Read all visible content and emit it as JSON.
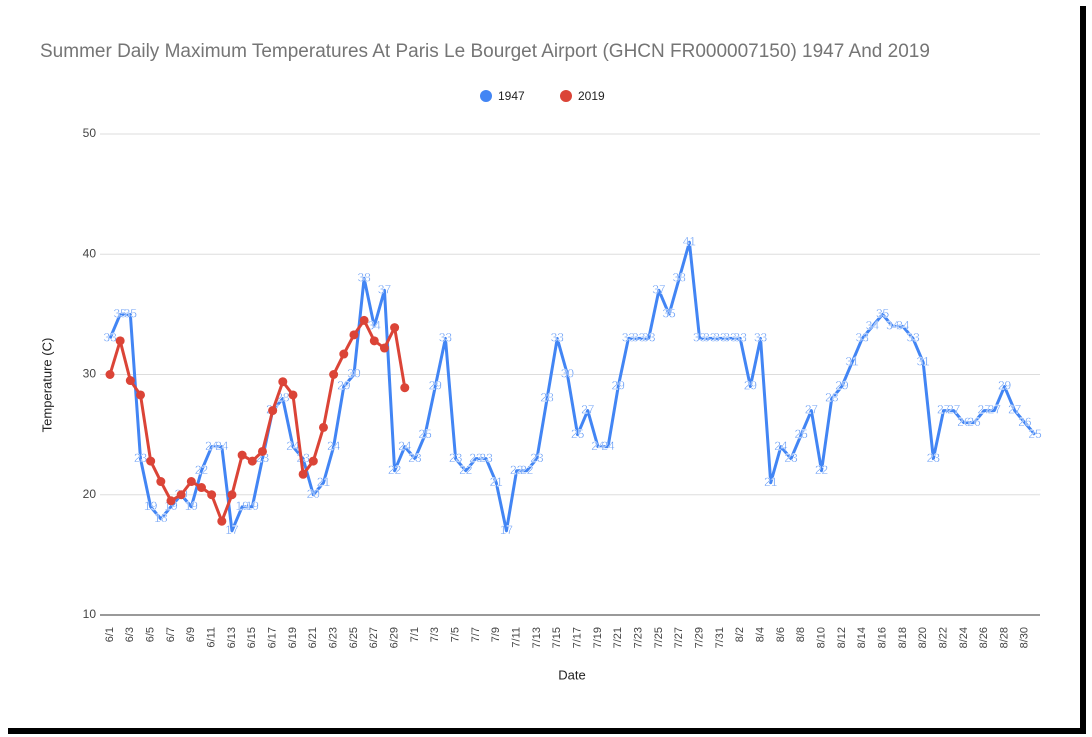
{
  "chart_data": {
    "type": "line",
    "title": "Summer Daily Maximum Temperatures At Paris Le Bourget Airport (GHCN FR000007150) 1947 And 2019",
    "x_label": "Date",
    "y_label": "Temperature (C)",
    "categories": [
      "6/1",
      null,
      "6/3",
      null,
      "6/5",
      null,
      "6/7",
      null,
      "6/9",
      null,
      "6/11",
      null,
      "6/13",
      null,
      "6/15",
      null,
      "6/17",
      null,
      "6/19",
      null,
      "6/21",
      null,
      "6/23",
      null,
      "6/25",
      null,
      "6/27",
      null,
      "6/29",
      null,
      "7/1",
      null,
      "7/3",
      null,
      "7/5",
      null,
      "7/7",
      null,
      "7/9",
      null,
      "7/11",
      null,
      "7/13",
      null,
      "7/15",
      null,
      "7/17",
      null,
      "7/19",
      null,
      "7/21",
      null,
      "7/23",
      null,
      "7/25",
      null,
      "7/27",
      null,
      "7/29",
      null,
      "7/31",
      null,
      "8/2",
      null,
      "8/4",
      null,
      "8/6",
      null,
      "8/8",
      null,
      "8/10",
      null,
      "8/12",
      null,
      "8/14",
      null,
      "8/16",
      null,
      "8/18",
      null,
      "8/20",
      null,
      "8/22",
      null,
      "8/24",
      null,
      "8/26",
      null,
      "8/28",
      null,
      "8/30",
      null
    ],
    "series": [
      {
        "name": "1947",
        "color": "#4285f4",
        "data_labels": true,
        "values": [
          33,
          35,
          35,
          23,
          19,
          18,
          19,
          20,
          19,
          22,
          24,
          24,
          17,
          19,
          19,
          23,
          27,
          28,
          24,
          23,
          20,
          21,
          24,
          29,
          30,
          38,
          34,
          37,
          22,
          24,
          23,
          25,
          29,
          33,
          23,
          22,
          23,
          23,
          21,
          17,
          22,
          22,
          23,
          28,
          33,
          30,
          25,
          27,
          24,
          24,
          29,
          33,
          33,
          33,
          37,
          35,
          38,
          41,
          33,
          33,
          33,
          33,
          33,
          29,
          33,
          21,
          24,
          23,
          25,
          27,
          22,
          28,
          29,
          31,
          33,
          34,
          35,
          34,
          34,
          33,
          31,
          23,
          27,
          27,
          26,
          26,
          27,
          27,
          29,
          27,
          26,
          25
        ]
      },
      {
        "name": "2019",
        "color": "#db4437",
        "data_labels": false,
        "values": [
          30,
          32.8,
          29.5,
          28.3,
          22.8,
          21.1,
          19.5,
          20,
          21.1,
          20.6,
          20,
          17.8,
          20,
          23.3,
          22.8,
          23.6,
          27,
          29.4,
          28.3,
          21.7,
          22.8,
          25.6,
          30,
          31.7,
          33.3,
          34.5,
          32.8,
          32.2,
          33.9,
          28.9,
          null,
          null,
          null,
          null,
          null,
          null,
          null,
          null,
          null,
          null,
          null,
          null,
          null,
          null,
          null,
          null,
          null,
          null,
          null,
          null,
          null,
          null,
          null,
          null,
          null,
          null,
          null,
          null,
          null,
          null,
          null,
          null,
          null,
          null,
          null,
          null,
          null,
          null,
          null,
          null,
          null,
          null,
          null,
          null,
          null,
          null,
          null,
          null,
          null,
          null,
          null,
          null,
          null,
          null,
          null,
          null,
          null,
          null,
          null,
          null,
          null,
          null
        ]
      }
    ],
    "ylim": [
      10,
      50
    ],
    "yticks": [
      10,
      20,
      30,
      40,
      50
    ],
    "grid": true,
    "legend": "top"
  }
}
